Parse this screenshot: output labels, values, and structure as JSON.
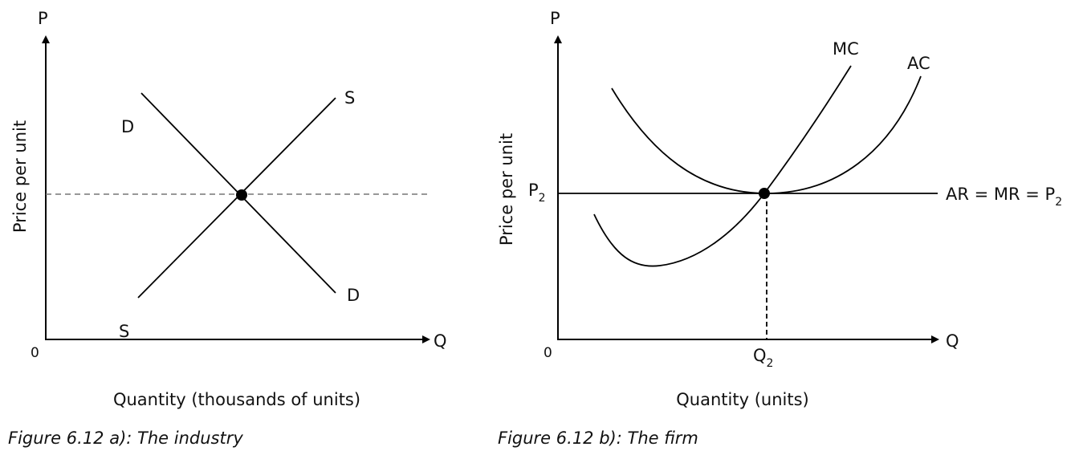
{
  "industry": {
    "y_axis_letter": "P",
    "x_axis_letter": "Q",
    "origin": "0",
    "y_axis_label": "Price per unit",
    "x_axis_label": "Quantity (thousands of units)",
    "demand_top": "D",
    "demand_bottom": "D",
    "supply_top": "S",
    "supply_bottom": "S",
    "caption": "Figure 6.12 a): The industry"
  },
  "firm": {
    "y_axis_letter": "P",
    "x_axis_letter": "Q",
    "origin": "0",
    "y_axis_label": "Price per unit",
    "x_axis_label": "Quantity (units)",
    "mc": "MC",
    "ac": "AC",
    "price": {
      "text": "P",
      "sub": "2"
    },
    "quantity": {
      "text": "Q",
      "sub": "2"
    },
    "revenue_line": {
      "text": "AR = MR = P",
      "sub": "2"
    },
    "caption": "Figure 6.12 b): The firm"
  }
}
